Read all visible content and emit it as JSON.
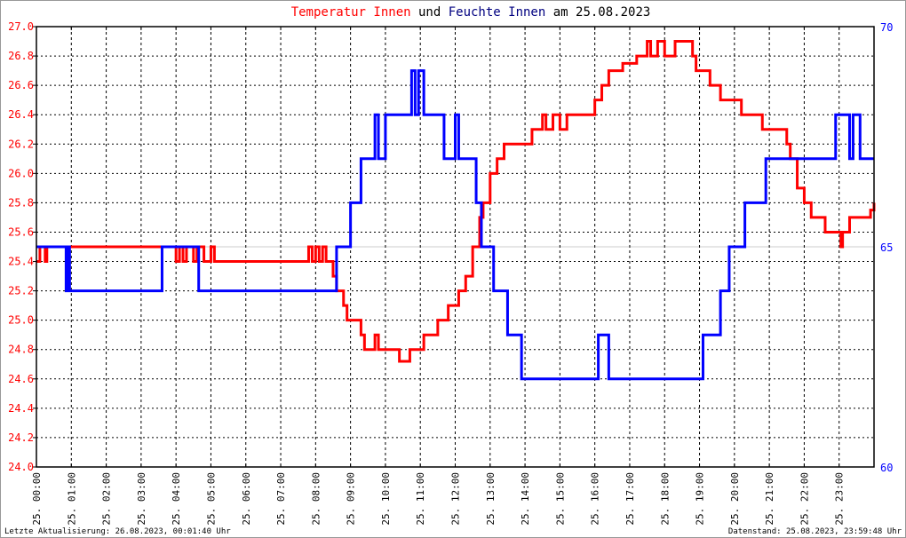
{
  "title": {
    "part1": "Temperatur Innen",
    "part2": "und",
    "part3": "Feuchte Innen",
    "part4": "am 25.08.2023"
  },
  "footer": {
    "left": "Letzte Aktualisierung: 26.08.2023, 00:01:40 Uhr",
    "right": "Datenstand: 25.08.2023, 23:59:48 Uhr"
  },
  "chart_data": {
    "type": "line",
    "title": "Temperatur Innen und Feuchte Innen am 25.08.2023",
    "x_unit": "hour of day",
    "xlim": [
      0,
      24
    ],
    "x_tick_labels": [
      "25. 00:00",
      "25. 01:00",
      "25. 02:00",
      "25. 03:00",
      "25. 04:00",
      "25. 05:00",
      "25. 06:00",
      "25. 07:00",
      "25. 08:00",
      "25. 09:00",
      "25. 10:00",
      "25. 11:00",
      "25. 12:00",
      "25. 13:00",
      "25. 14:00",
      "25. 15:00",
      "25. 16:00",
      "25. 17:00",
      "25. 18:00",
      "25. 19:00",
      "25. 20:00",
      "25. 21:00",
      "25. 22:00",
      "25. 23:00"
    ],
    "y_left": {
      "range": [
        24.0,
        27.0
      ],
      "ticks": [
        "24.0",
        "24.2",
        "24.4",
        "24.6",
        "24.8",
        "25.0",
        "25.2",
        "25.4",
        "25.6",
        "25.8",
        "26.0",
        "26.2",
        "26.4",
        "26.6",
        "26.8",
        "27.0"
      ],
      "color": "#ff0000"
    },
    "y_right": {
      "range": [
        60,
        70
      ],
      "ticks": [
        "60",
        "65",
        "70"
      ],
      "color": "#0000ff"
    },
    "grid": true,
    "series": [
      {
        "name": "Temperatur Innen",
        "axis": "left",
        "color": "#ff0000",
        "x": [
          0,
          0.1,
          0.25,
          0.3,
          4.0,
          4.1,
          4.2,
          4.3,
          4.5,
          4.6,
          4.8,
          5.0,
          5.1,
          5.45,
          7.8,
          7.9,
          8.0,
          8.1,
          8.2,
          8.3,
          8.5,
          8.6,
          8.8,
          8.9,
          9.3,
          9.4,
          9.7,
          9.8,
          10.4,
          10.7,
          11.1,
          11.5,
          11.8,
          12.1,
          12.3,
          12.5,
          12.7,
          12.8,
          13.0,
          13.2,
          13.4,
          14.2,
          14.5,
          14.6,
          14.8,
          15.0,
          15.2,
          15.4,
          16.0,
          16.2,
          16.4,
          16.8,
          17.2,
          17.5,
          17.6,
          17.8,
          18.0,
          18.3,
          18.8,
          18.9,
          19.3,
          19.6,
          20.2,
          20.8,
          21.5,
          21.6,
          21.8,
          22.0,
          22.2,
          22.6,
          23.05,
          23.1,
          23.3,
          23.9,
          24.0
        ],
        "values": [
          25.4,
          25.5,
          25.4,
          25.5,
          25.4,
          25.5,
          25.4,
          25.5,
          25.4,
          25.5,
          25.4,
          25.5,
          25.4,
          25.4,
          25.5,
          25.4,
          25.5,
          25.4,
          25.5,
          25.4,
          25.3,
          25.2,
          25.1,
          25.0,
          24.9,
          24.8,
          24.9,
          24.8,
          24.72,
          24.8,
          24.9,
          25.0,
          25.1,
          25.2,
          25.3,
          25.5,
          25.7,
          25.8,
          26.0,
          26.1,
          26.2,
          26.3,
          26.4,
          26.3,
          26.4,
          26.3,
          26.4,
          26.4,
          26.5,
          26.6,
          26.7,
          26.75,
          26.8,
          26.9,
          26.8,
          26.9,
          26.8,
          26.9,
          26.8,
          26.7,
          26.6,
          26.5,
          26.4,
          26.3,
          26.2,
          26.1,
          25.9,
          25.8,
          25.7,
          25.6,
          25.5,
          25.6,
          25.7,
          25.75,
          25.8
        ]
      },
      {
        "name": "Feuchte Innen",
        "axis": "right",
        "color": "#0000ff",
        "x": [
          0,
          0.85,
          0.9,
          0.95,
          1.0,
          3.6,
          4.65,
          8.6,
          9.0,
          9.3,
          9.7,
          9.8,
          10.0,
          10.75,
          10.85,
          10.95,
          11.1,
          11.68,
          12.0,
          12.1,
          12.2,
          12.6,
          12.75,
          13.1,
          13.5,
          13.9,
          16.1,
          16.4,
          19.1,
          19.6,
          19.85,
          20.3,
          20.9,
          22.9,
          23.3,
          23.4,
          23.6,
          24.0
        ],
        "values": [
          65,
          64,
          65,
          64,
          64,
          65,
          64,
          65,
          66,
          67,
          68,
          67,
          68,
          69,
          68,
          69,
          68,
          67,
          68,
          67,
          67,
          66,
          65,
          64,
          63,
          62,
          63,
          62,
          63,
          64,
          65,
          66,
          67,
          68,
          67,
          68,
          67,
          67
        ]
      }
    ]
  }
}
